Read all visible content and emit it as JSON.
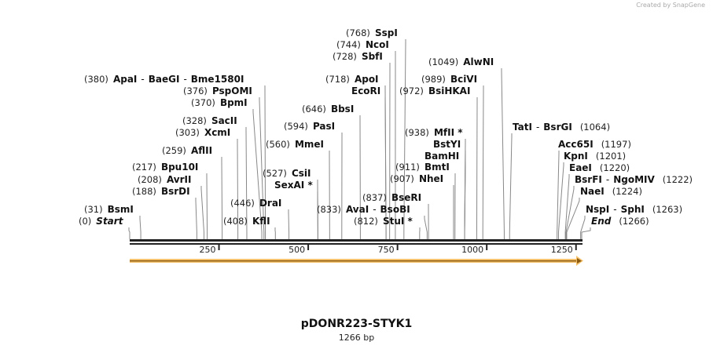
{
  "credit": "Created by SnapGene",
  "title": "pDONR223-STYK1",
  "length_label": "1266 bp",
  "sequence_length": 1266,
  "ticks": [
    "250",
    "500",
    "750",
    "1000",
    "1250"
  ],
  "colors": {
    "backbone": "#222222",
    "feature_arrow": "#f5b841",
    "lines": "#777777"
  },
  "sites": [
    {
      "pos": "(768)",
      "names": [
        "SspI"
      ],
      "bp": 768
    },
    {
      "pos": "(744)",
      "names": [
        "NcoI"
      ],
      "bp": 744
    },
    {
      "pos": "(728)",
      "names": [
        "SbfI"
      ],
      "bp": 728
    },
    {
      "pos": "(1049)",
      "names": [
        "AlwNI"
      ],
      "bp": 1049
    },
    {
      "pos": "(380)",
      "names": [
        "ApaI",
        "BaeGI",
        "Bme1580I"
      ],
      "bp": 380
    },
    {
      "pos": "(718)",
      "names": [
        "ApoI"
      ],
      "bp": 718
    },
    {
      "pos": "",
      "names": [
        "EcoRI"
      ],
      "bp": 718
    },
    {
      "pos": "(989)",
      "names": [
        "BciVI"
      ],
      "bp": 989
    },
    {
      "pos": "(972)",
      "names": [
        "BsiHKAI"
      ],
      "bp": 972
    },
    {
      "pos": "(376)",
      "names": [
        "PspOMI"
      ],
      "bp": 376
    },
    {
      "pos": "(370)",
      "names": [
        "BpmI"
      ],
      "bp": 370
    },
    {
      "pos": "(646)",
      "names": [
        "BbsI"
      ],
      "bp": 646
    },
    {
      "pos": "(328)",
      "names": [
        "SacII"
      ],
      "bp": 328
    },
    {
      "pos": "(303)",
      "names": [
        "XcmI"
      ],
      "bp": 303
    },
    {
      "pos": "(594)",
      "names": [
        "PasI"
      ],
      "bp": 594
    },
    {
      "pos": "(560)",
      "names": [
        "MmeI"
      ],
      "bp": 560
    },
    {
      "pos": "(938)",
      "names": [
        "MfII *"
      ],
      "bp": 938
    },
    {
      "pos": "",
      "names": [
        "BstYI"
      ],
      "bp": 938
    },
    {
      "pos": "",
      "names": [
        "BamHI"
      ],
      "bp": 938
    },
    {
      "pos": "(911)",
      "names": [
        "BmtI"
      ],
      "bp": 911
    },
    {
      "pos": "(907)",
      "names": [
        "NheI"
      ],
      "bp": 907
    },
    {
      "pos": "(259)",
      "names": [
        "AflII"
      ],
      "bp": 259
    },
    {
      "pos": "(217)",
      "names": [
        "Bpu10I"
      ],
      "bp": 217
    },
    {
      "pos": "(208)",
      "names": [
        "AvrII"
      ],
      "bp": 208
    },
    {
      "pos": "(188)",
      "names": [
        "BsrDI"
      ],
      "bp": 188
    },
    {
      "pos": "(527)",
      "names": [
        "CsiI"
      ],
      "bp": 527
    },
    {
      "pos": "",
      "names": [
        "SexAI *"
      ],
      "bp": 527
    },
    {
      "pos": "(446)",
      "names": [
        "DraI"
      ],
      "bp": 446
    },
    {
      "pos": "(408)",
      "names": [
        "KflI"
      ],
      "bp": 408
    },
    {
      "pos": "(31)",
      "names": [
        "BsmI"
      ],
      "bp": 31
    },
    {
      "pos": "(0)",
      "names": [
        "Start"
      ],
      "bp": 0,
      "italic": true
    },
    {
      "pos": "(837)",
      "names": [
        "BseRI"
      ],
      "bp": 837
    },
    {
      "pos": "(833)",
      "names": [
        "AvaI",
        "BsoBI"
      ],
      "bp": 833
    },
    {
      "pos": "(812)",
      "names": [
        "StuI *"
      ],
      "bp": 812
    },
    {
      "pos": "(1064)",
      "names": [
        "TatI",
        "BsrGI"
      ],
      "bp": 1064,
      "after": true
    },
    {
      "pos": "(1197)",
      "names": [
        "Acc65I"
      ],
      "bp": 1197,
      "after": true
    },
    {
      "pos": "(1201)",
      "names": [
        "KpnI"
      ],
      "bp": 1201,
      "after": true
    },
    {
      "pos": "(1220)",
      "names": [
        "EaeI"
      ],
      "bp": 1220,
      "after": true
    },
    {
      "pos": "(1222)",
      "names": [
        "BsrFI",
        "NgoMIV"
      ],
      "bp": 1222,
      "after": true
    },
    {
      "pos": "(1224)",
      "names": [
        "NaeI"
      ],
      "bp": 1224,
      "after": true
    },
    {
      "pos": "(1263)",
      "names": [
        "NspI",
        "SphI"
      ],
      "bp": 1263,
      "after": true
    },
    {
      "pos": "(1266)",
      "names": [
        "End"
      ],
      "bp": 1266,
      "after": true,
      "italic": true
    }
  ]
}
